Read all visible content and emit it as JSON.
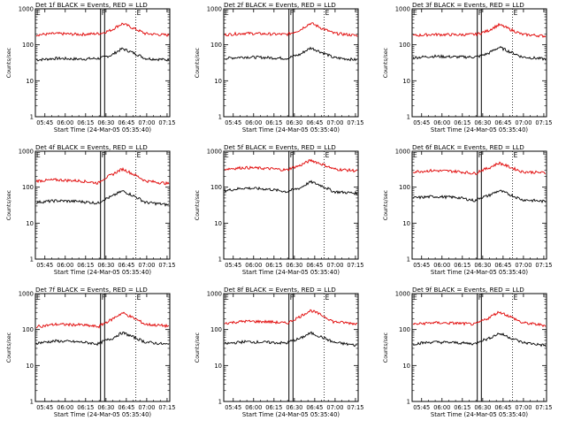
{
  "colors": {
    "events": "#000000",
    "lld": "#e00000",
    "background": "#ffffff",
    "axis": "#000000"
  },
  "common": {
    "xlabel": "Start Time (24-Mar-05 05:35:40)",
    "ylabel": "Counts/sec",
    "x_tick_labels": [
      "05:45",
      "06:00",
      "06:15",
      "06:30",
      "06:45",
      "07:00",
      "07:15"
    ],
    "y_tick_labels": [
      "1",
      "10",
      "100",
      "1000"
    ],
    "marker_labels": [
      "E",
      "F",
      "E"
    ]
  },
  "chart_data": [
    {
      "type": "line",
      "title": "Det 1f BLACK = Events, RED = LLD",
      "xlabel": "Start Time (24-Mar-05 05:35:40)",
      "ylabel": "Counts/sec",
      "y_scale": "log",
      "ylim": [
        1,
        1000
      ],
      "xlim": [
        "05:38",
        "07:17"
      ],
      "markers": {
        "E1": "05:38",
        "F_start": "06:26",
        "F_end": "06:29",
        "E2": "06:52"
      },
      "series": [
        {
          "name": "Events",
          "color": "black",
          "profile": [
            [
              0,
              38
            ],
            [
              0.15,
              42
            ],
            [
              0.33,
              40
            ],
            [
              0.47,
              42
            ],
            [
              0.5,
              44
            ],
            [
              0.57,
              52
            ],
            [
              0.65,
              78
            ],
            [
              0.73,
              60
            ],
            [
              0.82,
              42
            ],
            [
              1,
              38
            ]
          ]
        },
        {
          "name": "LLD",
          "color": "red",
          "profile": [
            [
              0,
              190
            ],
            [
              0.15,
              205
            ],
            [
              0.33,
              195
            ],
            [
              0.47,
              205
            ],
            [
              0.5,
              215
            ],
            [
              0.57,
              260
            ],
            [
              0.65,
              390
            ],
            [
              0.73,
              290
            ],
            [
              0.82,
              205
            ],
            [
              1,
              185
            ]
          ]
        }
      ]
    },
    {
      "type": "line",
      "title": "Det 2f BLACK = Events, RED = LLD",
      "xlabel": "Start Time (24-Mar-05 05:35:40)",
      "ylabel": "Counts/sec",
      "y_scale": "log",
      "ylim": [
        1,
        1000
      ],
      "xlim": [
        "05:38",
        "07:17"
      ],
      "markers": {
        "E1": "05:38",
        "F_start": "06:26",
        "F_end": "06:29",
        "E2": "06:52"
      },
      "series": [
        {
          "name": "Events",
          "color": "black",
          "profile": [
            [
              0,
              42
            ],
            [
              0.15,
              46
            ],
            [
              0.33,
              44
            ],
            [
              0.47,
              42
            ],
            [
              0.5,
              46
            ],
            [
              0.57,
              54
            ],
            [
              0.65,
              82
            ],
            [
              0.73,
              62
            ],
            [
              0.82,
              44
            ],
            [
              1,
              38
            ]
          ]
        },
        {
          "name": "LLD",
          "color": "red",
          "profile": [
            [
              0,
              190
            ],
            [
              0.15,
              210
            ],
            [
              0.33,
              200
            ],
            [
              0.47,
              195
            ],
            [
              0.5,
              210
            ],
            [
              0.57,
              260
            ],
            [
              0.65,
              400
            ],
            [
              0.73,
              290
            ],
            [
              0.82,
              210
            ],
            [
              1,
              180
            ]
          ]
        }
      ]
    },
    {
      "type": "line",
      "title": "Det 3f BLACK = Events, RED = LLD",
      "xlabel": "Start Time (24-Mar-05 05:35:40)",
      "ylabel": "Counts/sec",
      "y_scale": "log",
      "ylim": [
        1,
        1000
      ],
      "xlim": [
        "05:38",
        "07:17"
      ],
      "markers": {
        "E1": "05:38",
        "F_start": "06:26",
        "F_end": "06:29",
        "E2": "06:52"
      },
      "series": [
        {
          "name": "Events",
          "color": "black",
          "profile": [
            [
              0,
              44
            ],
            [
              0.15,
              48
            ],
            [
              0.33,
              46
            ],
            [
              0.47,
              46
            ],
            [
              0.5,
              48
            ],
            [
              0.57,
              58
            ],
            [
              0.65,
              85
            ],
            [
              0.73,
              64
            ],
            [
              0.82,
              46
            ],
            [
              1,
              40
            ]
          ]
        },
        {
          "name": "LLD",
          "color": "red",
          "profile": [
            [
              0,
              180
            ],
            [
              0.15,
              195
            ],
            [
              0.33,
              190
            ],
            [
              0.47,
              195
            ],
            [
              0.5,
              205
            ],
            [
              0.57,
              250
            ],
            [
              0.65,
              360
            ],
            [
              0.73,
              270
            ],
            [
              0.82,
              195
            ],
            [
              1,
              175
            ]
          ]
        }
      ]
    },
    {
      "type": "line",
      "title": "Det 4f BLACK = Events, RED = LLD",
      "xlabel": "Start Time (24-Mar-05 05:35:40)",
      "ylabel": "Counts/sec",
      "y_scale": "log",
      "ylim": [
        1,
        1000
      ],
      "xlim": [
        "05:38",
        "07:17"
      ],
      "markers": {
        "E1": "05:38",
        "F_start": "06:26",
        "F_end": "06:29",
        "E2": "06:52"
      },
      "series": [
        {
          "name": "Events",
          "color": "black",
          "profile": [
            [
              0,
              38
            ],
            [
              0.15,
              42
            ],
            [
              0.33,
              40
            ],
            [
              0.47,
              36
            ],
            [
              0.5,
              44
            ],
            [
              0.57,
              55
            ],
            [
              0.65,
              78
            ],
            [
              0.73,
              58
            ],
            [
              0.82,
              38
            ],
            [
              1,
              32
            ]
          ]
        },
        {
          "name": "LLD",
          "color": "red",
          "profile": [
            [
              0,
              150
            ],
            [
              0.15,
              160
            ],
            [
              0.33,
              150
            ],
            [
              0.47,
              130
            ],
            [
              0.5,
              165
            ],
            [
              0.57,
              220
            ],
            [
              0.65,
              320
            ],
            [
              0.73,
              230
            ],
            [
              0.82,
              150
            ],
            [
              1,
              125
            ]
          ]
        }
      ]
    },
    {
      "type": "line",
      "title": "Det 5f BLACK = Events, RED = LLD",
      "xlabel": "Start Time (24-Mar-05 05:35:40)",
      "ylabel": "Counts/sec",
      "y_scale": "log",
      "ylim": [
        1,
        1000
      ],
      "xlim": [
        "05:38",
        "07:17"
      ],
      "markers": {
        "E1": "05:38",
        "F_start": "06:26",
        "F_end": "06:29",
        "E2": "06:52"
      },
      "series": [
        {
          "name": "Events",
          "color": "black",
          "profile": [
            [
              0,
              80
            ],
            [
              0.15,
              95
            ],
            [
              0.33,
              88
            ],
            [
              0.47,
              75
            ],
            [
              0.5,
              82
            ],
            [
              0.57,
              95
            ],
            [
              0.65,
              140
            ],
            [
              0.73,
              110
            ],
            [
              0.82,
              75
            ],
            [
              1,
              68
            ]
          ]
        },
        {
          "name": "LLD",
          "color": "red",
          "profile": [
            [
              0,
              320
            ],
            [
              0.15,
              350
            ],
            [
              0.33,
              330
            ],
            [
              0.47,
              300
            ],
            [
              0.5,
              340
            ],
            [
              0.57,
              400
            ],
            [
              0.65,
              560
            ],
            [
              0.73,
              440
            ],
            [
              0.82,
              320
            ],
            [
              1,
              285
            ]
          ]
        }
      ]
    },
    {
      "type": "line",
      "title": "Det 6f BLACK = Events, RED = LLD",
      "xlabel": "Start Time (24-Mar-05 05:35:40)",
      "ylabel": "Counts/sec",
      "y_scale": "log",
      "ylim": [
        1,
        1000
      ],
      "xlim": [
        "05:38",
        "07:17"
      ],
      "markers": {
        "E1": "05:38",
        "F_start": "06:26",
        "F_end": "06:29",
        "E2": "06:52"
      },
      "series": [
        {
          "name": "Events",
          "color": "black",
          "profile": [
            [
              0,
              50
            ],
            [
              0.15,
              55
            ],
            [
              0.33,
              52
            ],
            [
              0.47,
              42
            ],
            [
              0.5,
              50
            ],
            [
              0.57,
              58
            ],
            [
              0.65,
              80
            ],
            [
              0.73,
              62
            ],
            [
              0.82,
              45
            ],
            [
              1,
              40
            ]
          ]
        },
        {
          "name": "LLD",
          "color": "red",
          "profile": [
            [
              0,
              270
            ],
            [
              0.15,
              290
            ],
            [
              0.33,
              275
            ],
            [
              0.47,
              240
            ],
            [
              0.5,
              280
            ],
            [
              0.57,
              340
            ],
            [
              0.65,
              470
            ],
            [
              0.73,
              360
            ],
            [
              0.82,
              270
            ],
            [
              1,
              250
            ]
          ]
        }
      ]
    },
    {
      "type": "line",
      "title": "Det 7f BLACK = Events, RED = LLD",
      "xlabel": "Start Time (24-Mar-05 05:35:40)",
      "ylabel": "Counts/sec",
      "y_scale": "log",
      "ylim": [
        1,
        1000
      ],
      "xlim": [
        "05:38",
        "07:17"
      ],
      "markers": {
        "E1": "05:38",
        "F_start": "06:26",
        "F_end": "06:29",
        "E2": "06:52"
      },
      "series": [
        {
          "name": "Events",
          "color": "black",
          "profile": [
            [
              0,
              42
            ],
            [
              0.15,
              48
            ],
            [
              0.33,
              45
            ],
            [
              0.47,
              40
            ],
            [
              0.5,
              46
            ],
            [
              0.57,
              56
            ],
            [
              0.65,
              82
            ],
            [
              0.73,
              62
            ],
            [
              0.82,
              45
            ],
            [
              1,
              38
            ]
          ]
        },
        {
          "name": "LLD",
          "color": "red",
          "profile": [
            [
              0,
              120
            ],
            [
              0.15,
              140
            ],
            [
              0.33,
              135
            ],
            [
              0.47,
              120
            ],
            [
              0.5,
              140
            ],
            [
              0.57,
              190
            ],
            [
              0.65,
              290
            ],
            [
              0.73,
              210
            ],
            [
              0.82,
              140
            ],
            [
              1,
              125
            ]
          ]
        }
      ]
    },
    {
      "type": "line",
      "title": "Det 8f BLACK = Events, RED = LLD",
      "xlabel": "Start Time (24-Mar-05 05:35:40)",
      "ylabel": "Counts/sec",
      "y_scale": "log",
      "ylim": [
        1,
        1000
      ],
      "xlim": [
        "05:38",
        "07:17"
      ],
      "markers": {
        "E1": "05:38",
        "F_start": "06:26",
        "F_end": "06:29",
        "E2": "06:52"
      },
      "series": [
        {
          "name": "Events",
          "color": "black",
          "profile": [
            [
              0,
              40
            ],
            [
              0.15,
              46
            ],
            [
              0.33,
              44
            ],
            [
              0.47,
              42
            ],
            [
              0.5,
              48
            ],
            [
              0.57,
              56
            ],
            [
              0.65,
              80
            ],
            [
              0.73,
              62
            ],
            [
              0.82,
              44
            ],
            [
              1,
              36
            ]
          ]
        },
        {
          "name": "LLD",
          "color": "red",
          "profile": [
            [
              0,
              150
            ],
            [
              0.15,
              170
            ],
            [
              0.33,
              165
            ],
            [
              0.47,
              150
            ],
            [
              0.5,
              170
            ],
            [
              0.57,
              230
            ],
            [
              0.65,
              340
            ],
            [
              0.73,
              250
            ],
            [
              0.82,
              165
            ],
            [
              1,
              145
            ]
          ]
        }
      ]
    },
    {
      "type": "line",
      "title": "Det 9f BLACK = Events, RED = LLD",
      "xlabel": "Start Time (24-Mar-05 05:35:40)",
      "ylabel": "Counts/sec",
      "y_scale": "log",
      "ylim": [
        1,
        1000
      ],
      "xlim": [
        "05:38",
        "07:17"
      ],
      "markers": {
        "E1": "05:38",
        "F_start": "06:26",
        "F_end": "06:29",
        "E2": "06:52"
      },
      "series": [
        {
          "name": "Events",
          "color": "black",
          "profile": [
            [
              0,
              40
            ],
            [
              0.15,
              45
            ],
            [
              0.33,
              43
            ],
            [
              0.47,
              40
            ],
            [
              0.5,
              48
            ],
            [
              0.57,
              56
            ],
            [
              0.65,
              78
            ],
            [
              0.73,
              60
            ],
            [
              0.82,
              44
            ],
            [
              1,
              36
            ]
          ]
        },
        {
          "name": "LLD",
          "color": "red",
          "profile": [
            [
              0,
              140
            ],
            [
              0.15,
              155
            ],
            [
              0.33,
              150
            ],
            [
              0.47,
              140
            ],
            [
              0.5,
              160
            ],
            [
              0.57,
              210
            ],
            [
              0.65,
              310
            ],
            [
              0.73,
              230
            ],
            [
              0.82,
              155
            ],
            [
              1,
              130
            ]
          ]
        }
      ]
    }
  ]
}
